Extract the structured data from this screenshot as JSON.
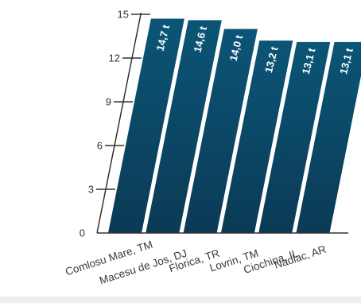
{
  "chart_data": {
    "type": "bar",
    "categories": [
      "Comlosu Mare, TM",
      "Macesu de Jos, DJ",
      "Florica, TR",
      "Lovrin, TM",
      "Ciochina, IL",
      "Nadlac, AR"
    ],
    "values": [
      14.7,
      14.6,
      14.0,
      13.2,
      13.1,
      13.1
    ],
    "data_labels": [
      "14,7 t",
      "14,6 t",
      "14,0 t",
      "13,2 t",
      "13,1 t",
      "13,1 t"
    ],
    "yticks": [
      0,
      3,
      6,
      9,
      12,
      15
    ],
    "ylim": [
      0,
      15
    ],
    "title": "",
    "xlabel": "",
    "ylabel": "",
    "grid": false,
    "legend": "none",
    "colors": {
      "bar_top": "#0b5577",
      "bar_bottom": "#0b3a55",
      "axis": "#333333"
    }
  }
}
